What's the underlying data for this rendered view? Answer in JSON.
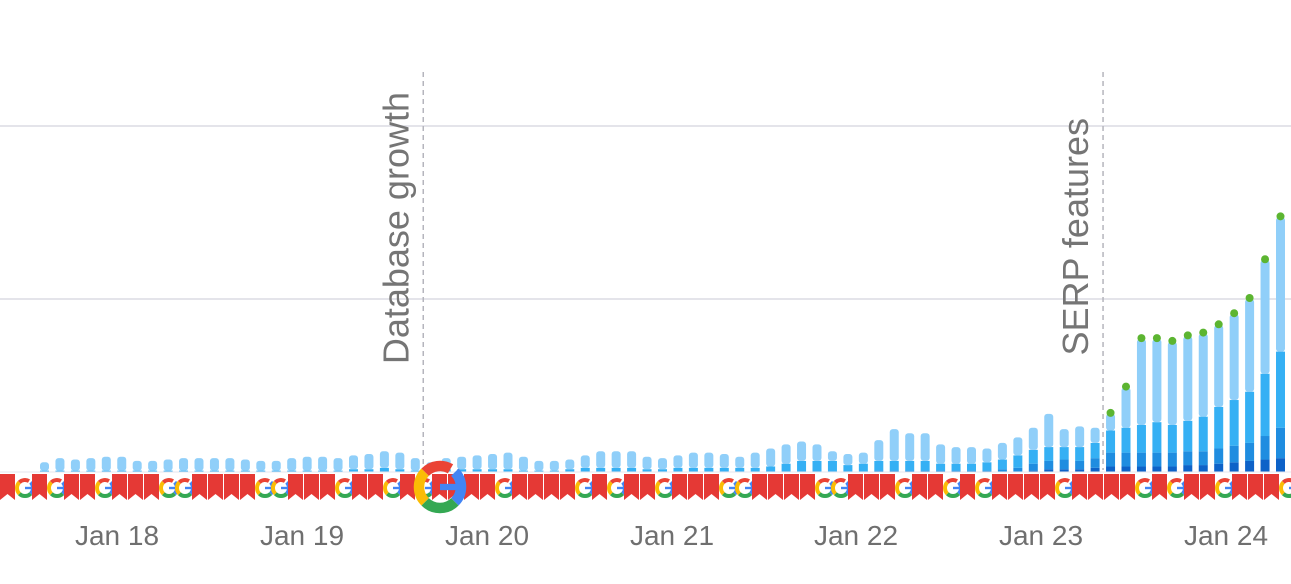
{
  "chart_data": {
    "type": "bar",
    "stacked": true,
    "title": "",
    "xlabel": "",
    "ylabel": "",
    "grid": true,
    "legend": "none",
    "x_tick_labels": [
      "Jan 18",
      "Jan 19",
      "Jan 20",
      "Jan 21",
      "Jan 22",
      "Jan 23",
      "Jan 24"
    ],
    "ylim": [
      0,
      2.5
    ],
    "annotations": [
      {
        "label": "Database growth",
        "after_bar": 25
      },
      {
        "label": "SERP features",
        "after_bar": 69
      }
    ],
    "series_colors": [
      "#0d62c8",
      "#1f8de0",
      "#35b0f4",
      "#90cff9"
    ],
    "top_marker_color": "#5cb531",
    "series": [
      {
        "name": "",
        "values": [
          0,
          0,
          0,
          0,
          0,
          0,
          0,
          0,
          0,
          0,
          0,
          0,
          0,
          0,
          0,
          0,
          0,
          0,
          0,
          0,
          0,
          0,
          0,
          0,
          0,
          0,
          0,
          0,
          0,
          0,
          0,
          0,
          0,
          0,
          0,
          0,
          0,
          0,
          0,
          0,
          0,
          0,
          0,
          0,
          0,
          0,
          0,
          0,
          0,
          0,
          0,
          0,
          0,
          0,
          0,
          0,
          0,
          0,
          0,
          0,
          0,
          0,
          0,
          0,
          0.01,
          0.02,
          0.02,
          0.02,
          0.03,
          0.04,
          0.04,
          0.04,
          0.04,
          0.04,
          0.05,
          0.05,
          0.06,
          0.07,
          0.08,
          0.09,
          0.1,
          0.12
        ]
      },
      {
        "name": "",
        "values": [
          0,
          0,
          0,
          0,
          0,
          0,
          0,
          0,
          0,
          0,
          0,
          0,
          0,
          0,
          0,
          0,
          0,
          0,
          0,
          0,
          0,
          0,
          0,
          0,
          0,
          0,
          0,
          0,
          0,
          0,
          0,
          0,
          0,
          0,
          0,
          0,
          0,
          0,
          0,
          0,
          0,
          0,
          0,
          0,
          0,
          0,
          0,
          0,
          0,
          0,
          0,
          0,
          0,
          0,
          0.01,
          0.01,
          0.01,
          0.01,
          0.01,
          0.01,
          0.01,
          0.01,
          0.02,
          0.03,
          0.05,
          0.06,
          0.07,
          0.06,
          0.07,
          0.1,
          0.1,
          0.1,
          0.1,
          0.1,
          0.1,
          0.1,
          0.11,
          0.12,
          0.13,
          0.17,
          0.22,
          0.2
        ]
      },
      {
        "name": "",
        "values": [
          0.01,
          0.01,
          0.01,
          0.01,
          0.01,
          0.01,
          0.01,
          0.01,
          0.01,
          0.01,
          0.01,
          0.01,
          0.01,
          0.01,
          0.01,
          0.01,
          0.01,
          0.01,
          0.01,
          0.01,
          0.02,
          0.02,
          0.03,
          0.02,
          0.01,
          0.01,
          0.02,
          0.02,
          0.02,
          0.02,
          0.02,
          0.01,
          0.01,
          0.01,
          0.02,
          0.03,
          0.03,
          0.03,
          0.03,
          0.02,
          0.02,
          0.03,
          0.03,
          0.03,
          0.03,
          0.03,
          0.03,
          0.04,
          0.06,
          0.08,
          0.08,
          0.08,
          0.05,
          0.06,
          0.07,
          0.07,
          0.07,
          0.07,
          0.05,
          0.05,
          0.05,
          0.06,
          0.07,
          0.09,
          0.1,
          0.1,
          0.09,
          0.1,
          0.11,
          0.16,
          0.18,
          0.2,
          0.22,
          0.2,
          0.22,
          0.25,
          0.3,
          0.33,
          0.37,
          0.45,
          0.55,
          0.6
        ]
      },
      {
        "name": "",
        "values": [
          0.06,
          0.09,
          0.08,
          0.09,
          0.1,
          0.1,
          0.07,
          0.07,
          0.08,
          0.09,
          0.09,
          0.09,
          0.09,
          0.08,
          0.07,
          0.07,
          0.09,
          0.1,
          0.1,
          0.09,
          0.1,
          0.11,
          0.12,
          0.12,
          0.09,
          0.06,
          0.08,
          0.09,
          0.1,
          0.11,
          0.12,
          0.1,
          0.07,
          0.07,
          0.07,
          0.09,
          0.12,
          0.12,
          0.12,
          0.09,
          0.08,
          0.09,
          0.11,
          0.11,
          0.1,
          0.08,
          0.11,
          0.13,
          0.14,
          0.14,
          0.12,
          0.07,
          0.08,
          0.08,
          0.15,
          0.23,
          0.2,
          0.2,
          0.14,
          0.12,
          0.12,
          0.1,
          0.12,
          0.13,
          0.16,
          0.24,
          0.13,
          0.15,
          0.11,
          0.12,
          0.29,
          0.62,
          0.6,
          0.6,
          0.61,
          0.6,
          0.59,
          0.62,
          0.67,
          0.82,
          0.97,
          1.02
        ]
      }
    ],
    "top_marker_from_bar": 69
  }
}
